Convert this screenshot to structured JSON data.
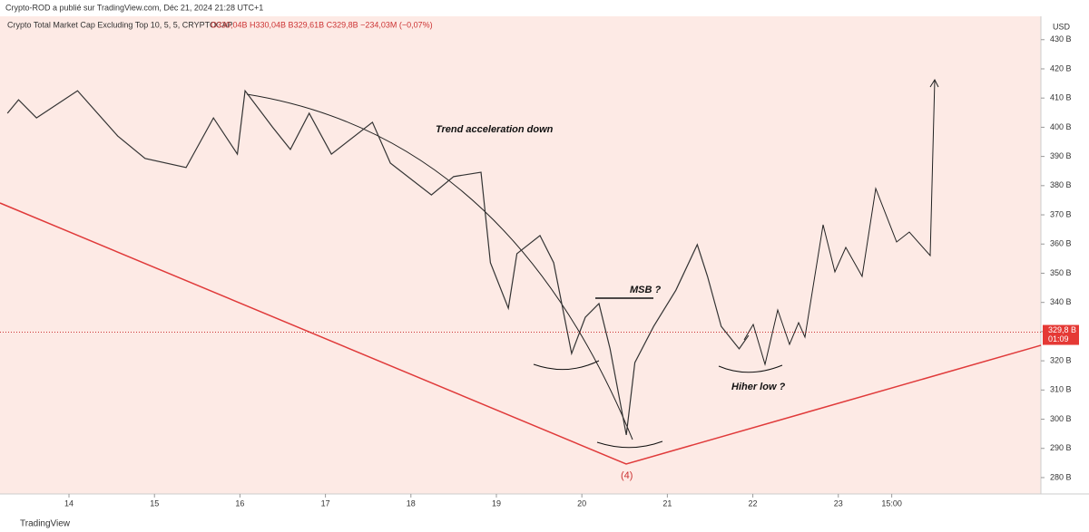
{
  "header": {
    "publisher": "Crypto-ROD a publié sur TradingView.com, Déc 21, 2024 21:28 UTC+1",
    "footer": "TradingView"
  },
  "chart_data": {
    "type": "line",
    "title": "Crypto Total Market Cap Excluding Top 10, 5, 5, CRYPTOCAP",
    "subtitle": "O330,04B H330,04B B329,61B C329,8B −234,03M (−0,07%)",
    "y_unit": "USD",
    "color": "#333333",
    "x": [
      13.28,
      13.41,
      13.62,
      14.1,
      14.57,
      14.89,
      15.37,
      15.69,
      15.97,
      16.06,
      16.38,
      16.59,
      16.81,
      17.07,
      17.55,
      17.76,
      18.24,
      18.5,
      18.82,
      18.93,
      19.14,
      19.24,
      19.51,
      19.67,
      19.88,
      20.04,
      20.2,
      20.33,
      20.52,
      20.62,
      20.84,
      21.1,
      21.35,
      21.47,
      21.63,
      21.84,
      21.95
    ],
    "values": [
      404.8,
      409.4,
      403.2,
      412.5,
      397,
      389.3,
      386.2,
      403.2,
      390.8,
      412.5,
      400.1,
      392.4,
      404.8,
      390.8,
      401.7,
      387.7,
      376.8,
      383.1,
      384.6,
      353.6,
      338,
      356.7,
      362.9,
      353.6,
      322.5,
      334.9,
      339.6,
      324.1,
      294.6,
      319.4,
      331.8,
      344.2,
      359.8,
      348.9,
      331.8,
      324.1,
      328.7
    ],
    "xlim": [
      13.193,
      25.37
    ],
    "xticks": [
      14,
      15,
      16,
      17,
      18,
      19,
      20,
      21,
      22,
      23,
      {
        "value": 23.625,
        "label": "15:00"
      }
    ],
    "ylim": [
      274.4,
      438
    ],
    "yticks": [
      {
        "value": 280,
        "label": "280 B"
      },
      {
        "value": 290,
        "label": "290 B"
      },
      {
        "value": 300,
        "label": "300 B"
      },
      {
        "value": 310,
        "label": "310 B"
      },
      {
        "value": 320,
        "label": "320 B"
      },
      {
        "value": 330,
        "label": "330 B"
      },
      {
        "value": 340,
        "label": "340 B"
      },
      {
        "value": 350,
        "label": "350 B"
      },
      {
        "value": 360,
        "label": "360 B"
      },
      {
        "value": 370,
        "label": "370 B"
      },
      {
        "value": 380,
        "label": "380 B"
      },
      {
        "value": 390,
        "label": "390 B"
      },
      {
        "value": 400,
        "label": "400 B"
      },
      {
        "value": 410,
        "label": "410 B"
      },
      {
        "value": 420,
        "label": "420 B"
      },
      {
        "value": 430,
        "label": "430 B"
      }
    ],
    "grid": false,
    "last_price": {
      "value": 329.8,
      "label": "329,8 B",
      "countdown": "01:09"
    },
    "annotations": [
      "Trend acceleration down",
      "MSB ?",
      "Hiher low ?",
      "(4)"
    ]
  }
}
